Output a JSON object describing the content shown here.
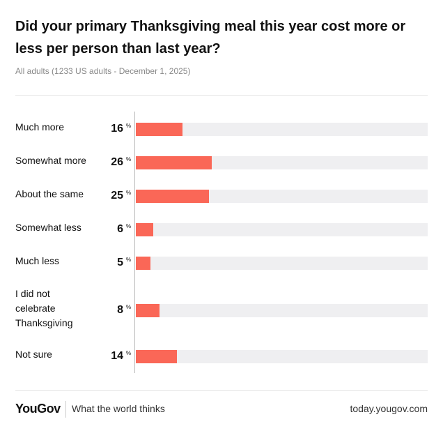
{
  "chart_data": {
    "type": "bar",
    "orientation": "horizontal",
    "title": "Did your primary Thanksgiving meal this year cost more or less per person than last year?",
    "subtitle": "All adults (1233 US adults - December 1, 2025)",
    "categories": [
      "Much more",
      "Somewhat more",
      "About the same",
      "Somewhat less",
      "Much less",
      "I did not celebrate Thanksgiving",
      "Not sure"
    ],
    "values": [
      16,
      26,
      25,
      6,
      5,
      8,
      14
    ],
    "value_suffix": "%",
    "color": "#fa6757",
    "track_color": "#efeff1",
    "xlim": [
      0,
      100
    ]
  },
  "footer": {
    "brand": "YouGov",
    "tagline": "What the world thinks",
    "url": "today.yougov.com"
  }
}
